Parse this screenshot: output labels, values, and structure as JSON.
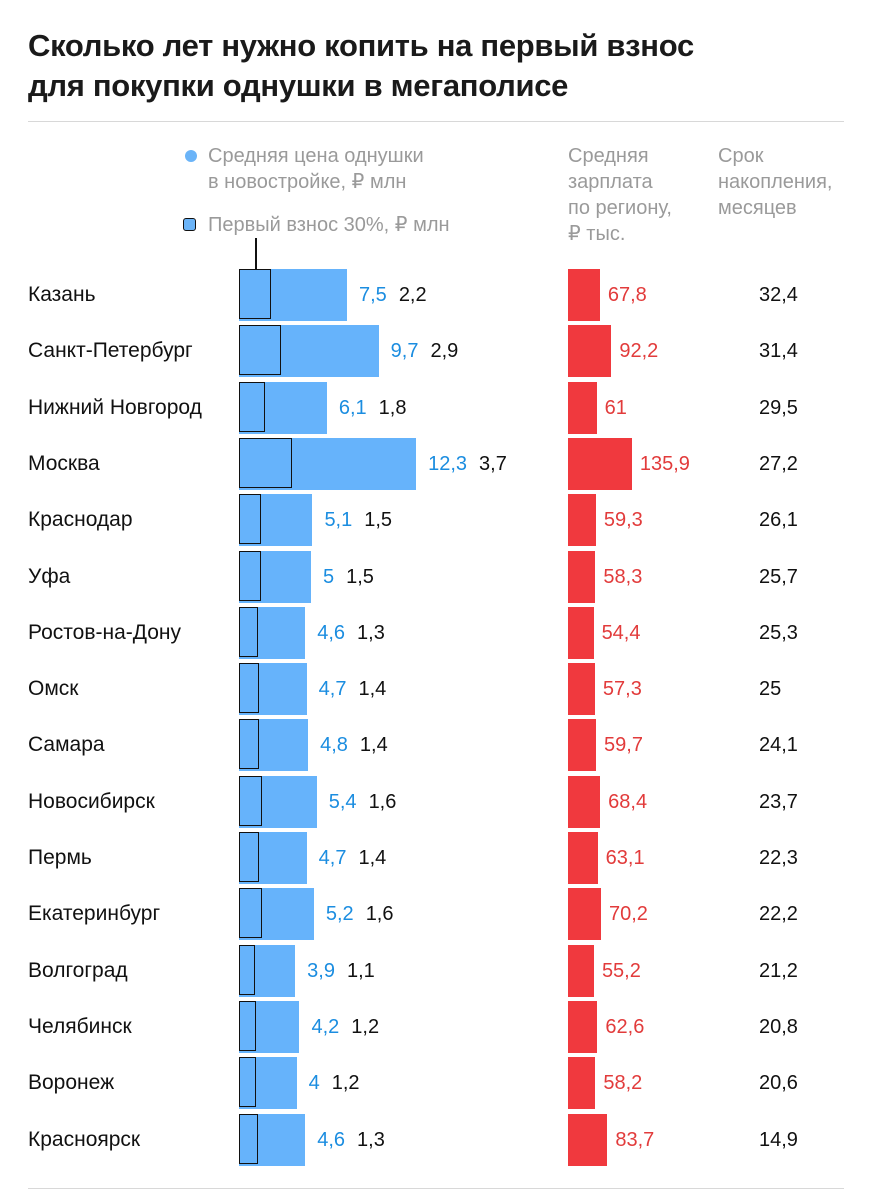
{
  "title": {
    "line1": "Сколько лет нужно копить на первый взнос",
    "line2": "для покупки однушки в мегаполисе"
  },
  "legend": {
    "price_line1": "Средняя цена однушки",
    "price_line2": "в новостройке, ₽ млн",
    "down_payment": "Первый взнос 30%, ₽ млн"
  },
  "column_headers": {
    "salary": [
      "Средняя",
      "зарплата",
      "по региону,",
      "₽ тыс."
    ],
    "months": [
      "Срок",
      "накопления,",
      "месяцев"
    ]
  },
  "colors": {
    "price_bar": "#66b3fb",
    "price_text": "#1b8de0",
    "salary_bar": "#f0393e",
    "salary_text": "#e23b3b"
  },
  "chart_data": {
    "type": "bar",
    "title": "Сколько лет нужно копить на первый взнос для покупки однушки в мегаполисе",
    "categories": [
      "Казань",
      "Санкт-Петербург",
      "Нижний Новгород",
      "Москва",
      "Краснодар",
      "Уфа",
      "Ростов-на-Дону",
      "Омск",
      "Самара",
      "Новосибирск",
      "Пермь",
      "Екатеринбург",
      "Волгоград",
      "Челябинск",
      "Воронеж",
      "Красноярск"
    ],
    "series": [
      {
        "name": "Средняя цена однушки в новостройке, ₽ млн",
        "values": [
          "7,5",
          "9,7",
          "6,1",
          "12,3",
          "5,1",
          "5",
          "4,6",
          "4,7",
          "4,8",
          "5,4",
          "4,7",
          "5,2",
          "3,9",
          "4,2",
          "4",
          "4,6"
        ]
      },
      {
        "name": "Первый взнос 30%, ₽ млн",
        "values": [
          "2,2",
          "2,9",
          "1,8",
          "3,7",
          "1,5",
          "1,5",
          "1,3",
          "1,4",
          "1,4",
          "1,6",
          "1,4",
          "1,6",
          "1,1",
          "1,2",
          "1,2",
          "1,3"
        ]
      },
      {
        "name": "Средняя зарплата по региону, ₽ тыс.",
        "values": [
          "67,8",
          "92,2",
          "61",
          "135,9",
          "59,3",
          "58,3",
          "54,4",
          "57,3",
          "59,7",
          "68,4",
          "63,1",
          "70,2",
          "55,2",
          "62,6",
          "58,2",
          "83,7"
        ]
      },
      {
        "name": "Срок накопления, месяцев",
        "values": [
          "32,4",
          "31,4",
          "29,5",
          "27,2",
          "26,1",
          "25,7",
          "25,3",
          "25",
          "24,1",
          "23,7",
          "22,3",
          "22,2",
          "21,2",
          "20,8",
          "20,6",
          "14,9"
        ]
      }
    ]
  }
}
